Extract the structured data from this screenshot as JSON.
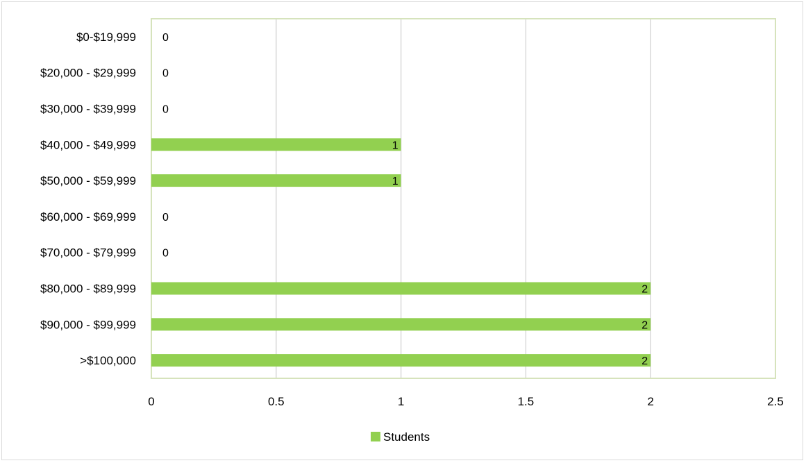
{
  "chart_data": {
    "type": "bar",
    "orientation": "horizontal",
    "categories": [
      "$0-$19,999",
      "$20,000 - $29,999",
      "$30,000 - $39,999",
      "$40,000 - $49,999",
      "$50,000 - $59,999",
      "$60,000 - $69,999",
      "$70,000 - $79,999",
      "$80,000 - $89,999",
      "$90,000 - $99,999",
      ">$100,000"
    ],
    "series": [
      {
        "name": "Students",
        "values": [
          0,
          0,
          0,
          1,
          1,
          0,
          0,
          2,
          2,
          2
        ],
        "color": "#92d050"
      }
    ],
    "xlim": [
      0,
      2.5
    ],
    "xticks": [
      "0",
      "0.5",
      "1",
      "1.5",
      "2",
      "2.5"
    ],
    "grid": true,
    "gridline_color": "#d9d9d9",
    "plot_border_color": "#d6e3bc",
    "legend_position": "bottom",
    "data_labels": true
  }
}
